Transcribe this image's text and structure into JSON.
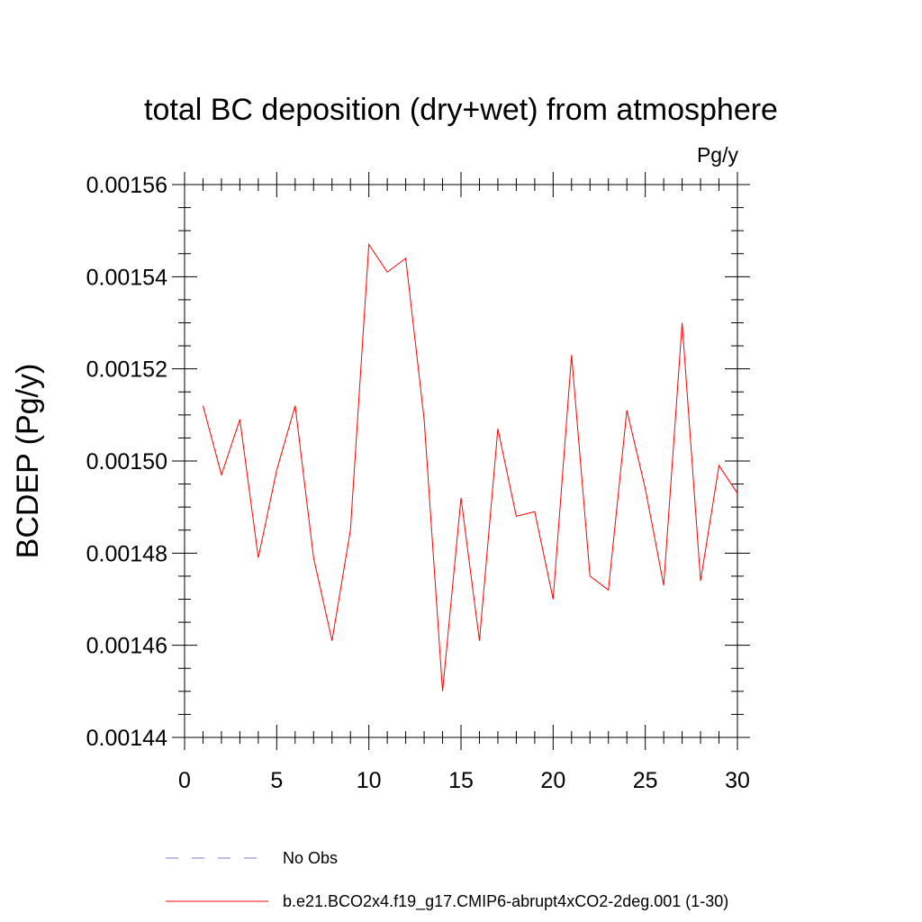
{
  "chart_data": {
    "type": "line",
    "title": "total BC deposition (dry+wet) from atmosphere",
    "units_label": "Pg/y",
    "xlabel": "",
    "ylabel": "BCDEP  (Pg/y)",
    "xlim": [
      0,
      30
    ],
    "ylim": [
      0.00144,
      0.00156
    ],
    "x_ticks": [
      "0",
      "5",
      "10",
      "15",
      "20",
      "25",
      "30"
    ],
    "y_ticks": [
      "0.00144",
      "0.00146",
      "0.00148",
      "0.00150",
      "0.00152",
      "0.00154",
      "0.00156"
    ],
    "grid": false,
    "x": [
      1,
      2,
      3,
      4,
      5,
      6,
      7,
      8,
      9,
      10,
      11,
      12,
      13,
      14,
      15,
      16,
      17,
      18,
      19,
      20,
      21,
      22,
      23,
      24,
      25,
      26,
      27,
      28,
      29,
      30
    ],
    "series": [
      {
        "name": "b.e21.BCO2x4.f19_g17.CMIP6-abrupt4xCO2-2deg.001 (1-30)",
        "color": "#ff0000",
        "values": [
          0.001512,
          0.001497,
          0.001509,
          0.001479,
          0.001498,
          0.001512,
          0.001479,
          0.001461,
          0.001485,
          0.001547,
          0.001541,
          0.001544,
          0.001509,
          0.00145,
          0.001492,
          0.001461,
          0.001507,
          0.001488,
          0.001489,
          0.00147,
          0.001523,
          0.001475,
          0.001472,
          0.001511,
          0.001494,
          0.001473,
          0.00153,
          0.001474,
          0.001499,
          0.001493
        ]
      }
    ],
    "legend": [
      {
        "label": "No Obs",
        "style": "dashed",
        "color": "#7b7bd0"
      },
      {
        "label": "b.e21.BCO2x4.f19_g17.CMIP6-abrupt4xCO2-2deg.001 (1-30)",
        "style": "solid",
        "color": "#ff0000"
      }
    ],
    "legend_position": "bottom"
  }
}
